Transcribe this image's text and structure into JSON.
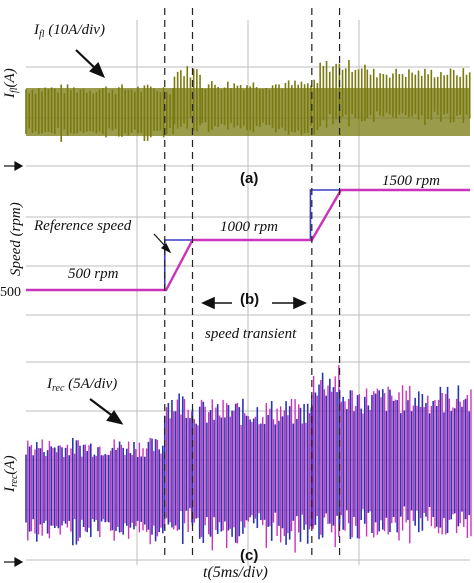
{
  "chart_data": [
    {
      "id": "a",
      "type": "line",
      "panel_label": "(a)",
      "ylabel_main": "I",
      "ylabel_sub": "fl",
      "ylabel_unit": "(A)",
      "annotation_main": "I",
      "annotation_sub": "fl",
      "annotation_rest": " (10A/div)",
      "color": "#7a7a10",
      "series": [
        {
          "x_range": [
            0,
            5.35
          ],
          "center": 0.0,
          "amplitude": 1.3
        },
        {
          "x_range": [
            5.35,
            6.35
          ],
          "center": 0.7,
          "amplitude": 1.6
        },
        {
          "x_range": [
            6.35,
            10.6
          ],
          "center": 0.25,
          "amplitude": 1.3
        },
        {
          "x_range": [
            10.6,
            12.3
          ],
          "center": 1.0,
          "amplitude": 1.6
        },
        {
          "x_range": [
            12.3,
            16.0
          ],
          "center": 0.9,
          "amplitude": 1.3
        }
      ],
      "y_divisions": 3
    },
    {
      "id": "b",
      "type": "line",
      "panel_label": "(b)",
      "ylabel": "Speed (rpm)",
      "tick_label": "500",
      "labels": {
        "reference": "Reference speed",
        "s500": "500 rpm",
        "s1000": "1000 rpm",
        "s1500": "1500 rpm",
        "transient": "speed transient"
      },
      "reference_color": "#3a3acc",
      "actual_color": "#cc33bb",
      "reference": {
        "x": [
          0,
          5.0,
          5.0,
          10.25,
          10.25,
          16.0
        ],
        "y": [
          500,
          500,
          1000,
          1000,
          1500,
          1500
        ]
      },
      "actual": {
        "x": [
          0,
          5.05,
          6.0,
          10.3,
          11.35,
          16.0
        ],
        "y": [
          500,
          500,
          1000,
          1000,
          1500,
          1500
        ]
      },
      "ylim": [
        -200,
        1800
      ]
    },
    {
      "id": "c",
      "type": "line",
      "panel_label": "(c)",
      "ylabel_main": "I",
      "ylabel_sub": "rec",
      "ylabel_unit": "(A)",
      "annotation_main": "I",
      "annotation_sub": "rec",
      "annotation_rest": " (5A/div)",
      "colors": [
        "#2a35b5",
        "#cc33bb"
      ],
      "series": [
        {
          "x_range": [
            0,
            5.0
          ],
          "center": 0.0,
          "amplitude": 1.0
        },
        {
          "x_range": [
            5.0,
            6.0
          ],
          "center": 0.5,
          "amplitude": 1.5
        },
        {
          "x_range": [
            6.0,
            10.3
          ],
          "center": 0.4,
          "amplitude": 1.4
        },
        {
          "x_range": [
            10.3,
            11.3
          ],
          "center": 0.7,
          "amplitude": 1.8
        },
        {
          "x_range": [
            11.3,
            16.0
          ],
          "center": 0.6,
          "amplitude": 1.5
        }
      ],
      "y_divisions": 3
    }
  ],
  "xlabel": "t(5ms/div)",
  "dashed_markers_x": [
    5.0,
    6.0,
    10.3,
    11.3
  ]
}
